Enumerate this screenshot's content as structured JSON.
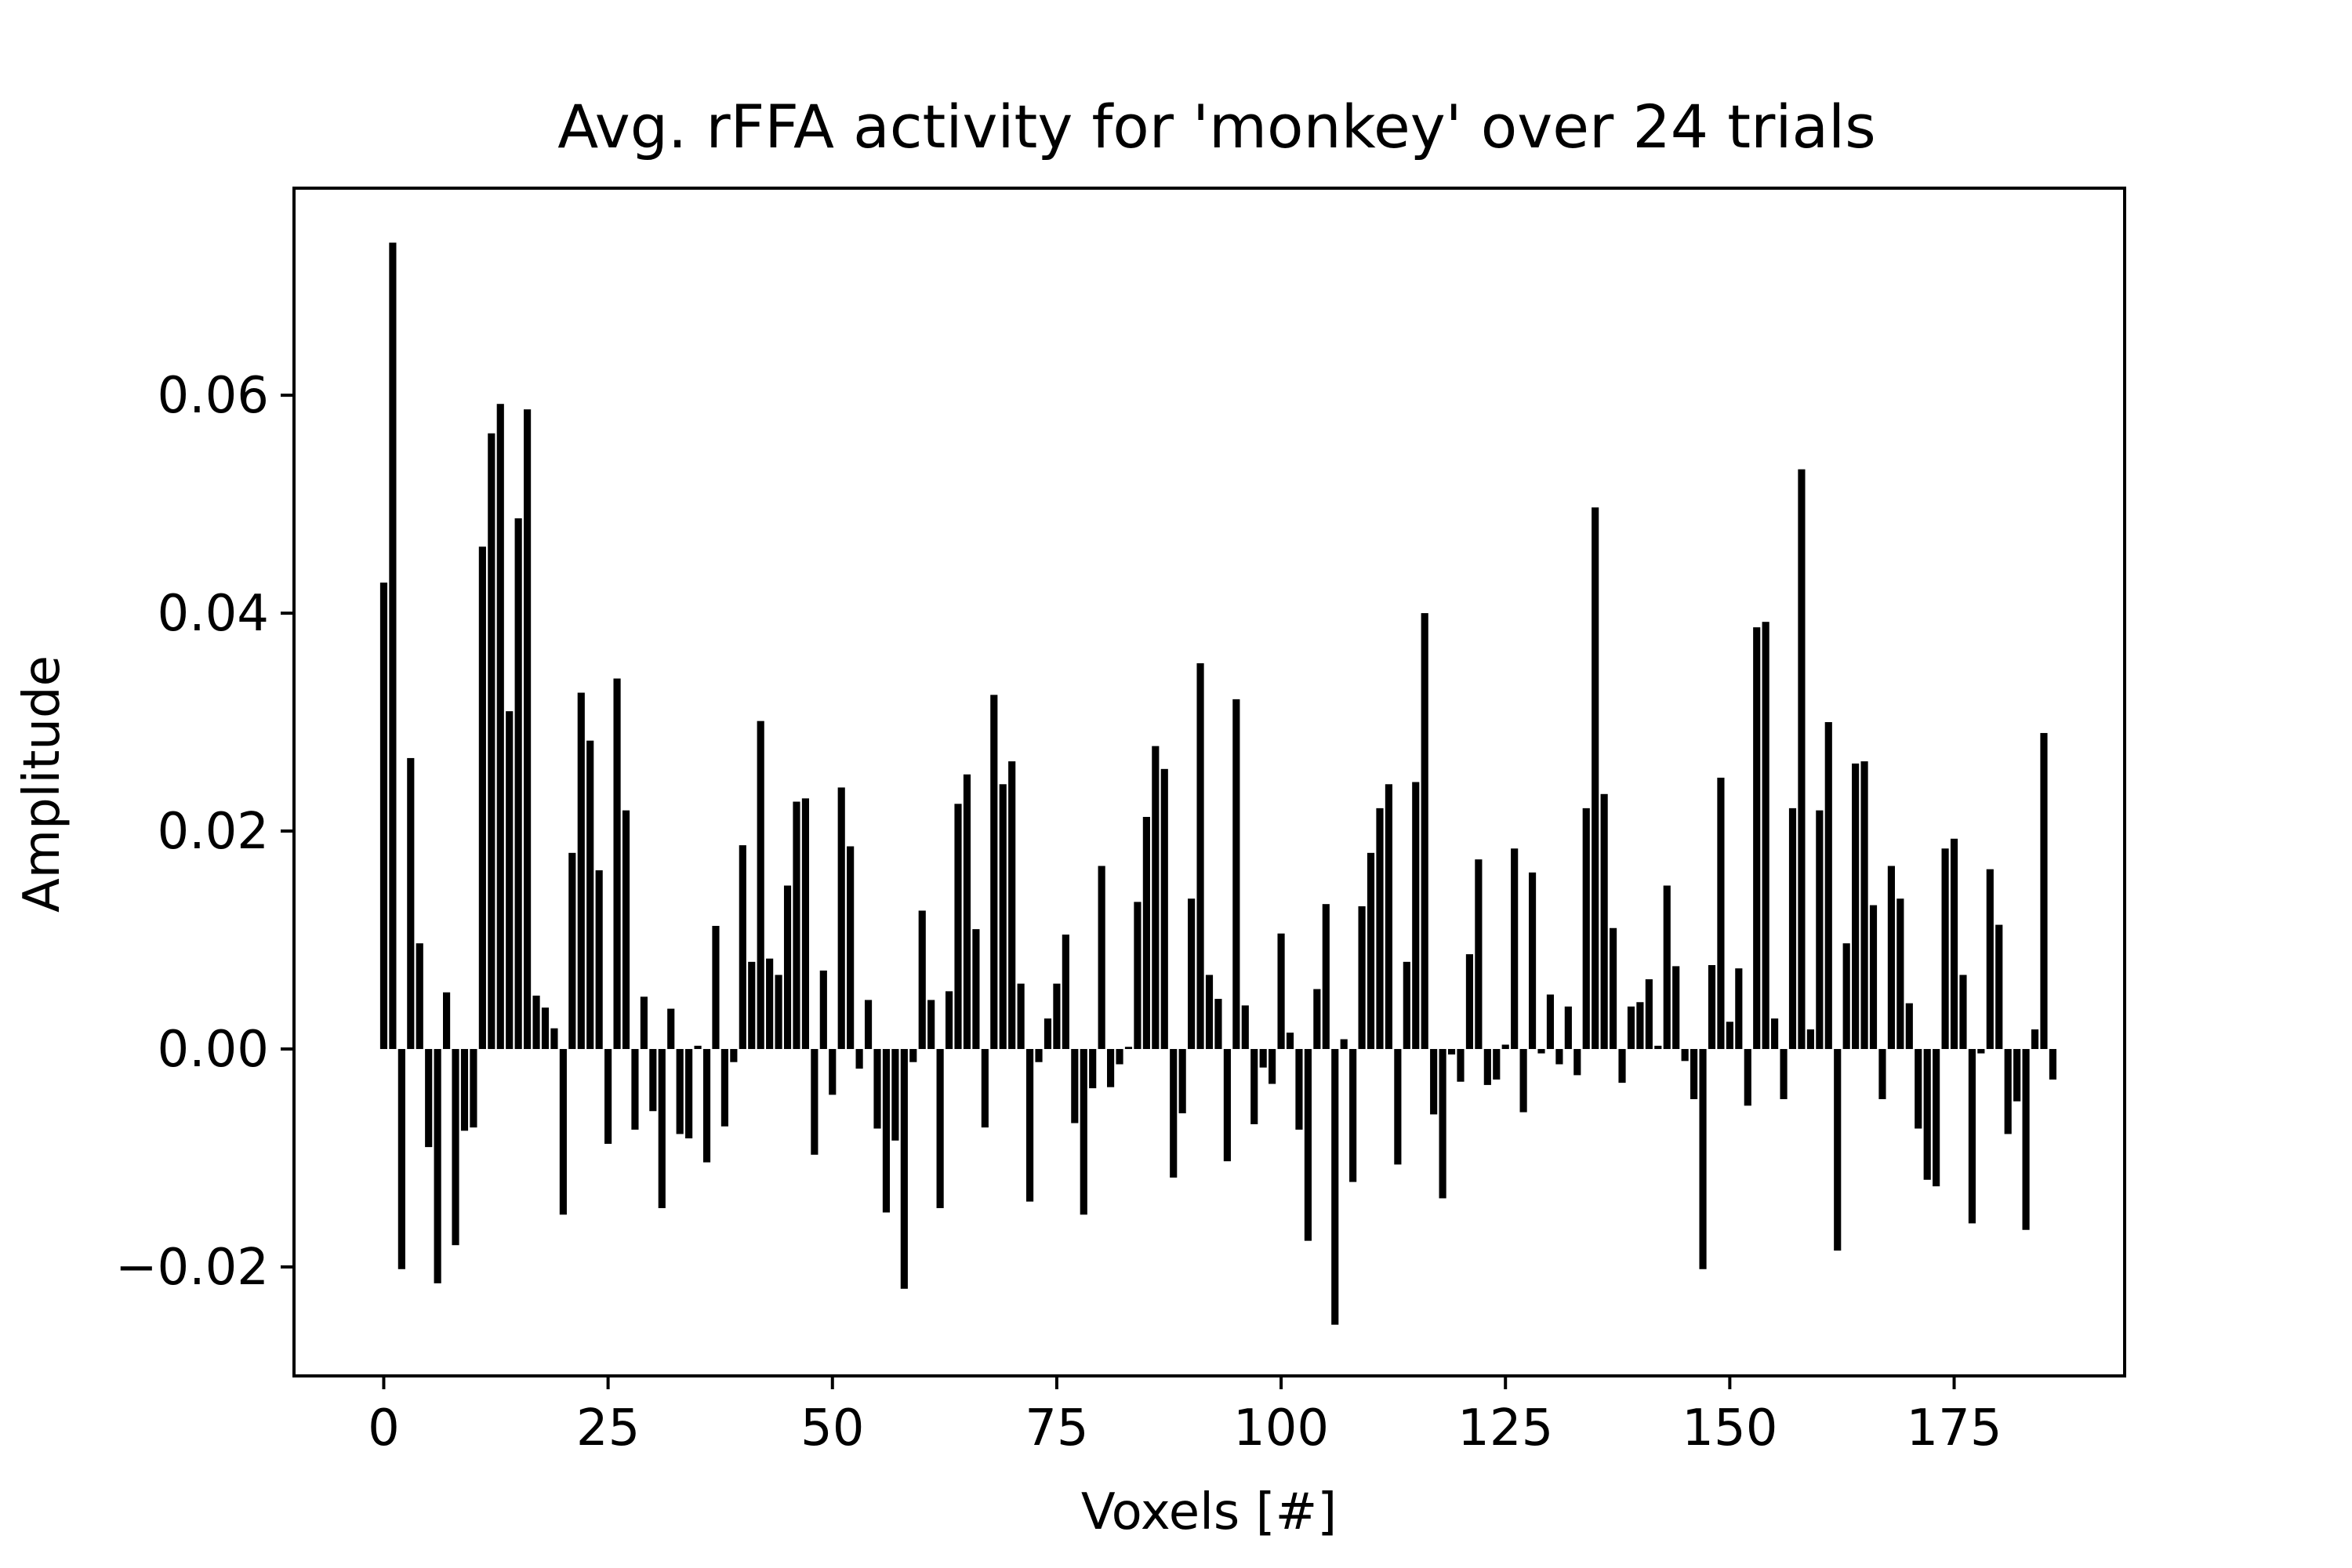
{
  "chart_data": {
    "type": "bar",
    "title": "Avg. rFFA activity for 'monkey' over 24 trials",
    "xlabel": "Voxels [#]",
    "ylabel": "Amplitude",
    "xlim": [
      -10,
      194
    ],
    "ylim": [
      -0.03,
      0.079
    ],
    "xticks": [
      0,
      25,
      50,
      75,
      100,
      125,
      150,
      175
    ],
    "xtick_labels": [
      "0",
      "25",
      "50",
      "75",
      "100",
      "125",
      "150",
      "175"
    ],
    "yticks": [
      -0.02,
      0.0,
      0.02,
      0.04,
      0.06
    ],
    "ytick_labels": [
      "−0.02",
      "0.00",
      "0.02",
      "0.04",
      "0.06"
    ],
    "grid": false,
    "legend": false,
    "bar_color": "#000000",
    "x": [
      0,
      1,
      2,
      3,
      4,
      5,
      6,
      7,
      8,
      9,
      10,
      11,
      12,
      13,
      14,
      15,
      16,
      17,
      18,
      19,
      20,
      21,
      22,
      23,
      24,
      25,
      26,
      27,
      28,
      29,
      30,
      31,
      32,
      33,
      34,
      35,
      36,
      37,
      38,
      39,
      40,
      41,
      42,
      43,
      44,
      45,
      46,
      47,
      48,
      49,
      50,
      51,
      52,
      53,
      54,
      55,
      56,
      57,
      58,
      59,
      60,
      61,
      62,
      63,
      64,
      65,
      66,
      67,
      68,
      69,
      70,
      71,
      72,
      73,
      74,
      75,
      76,
      77,
      78,
      79,
      80,
      81,
      82,
      83,
      84,
      85,
      86,
      87,
      88,
      89,
      90,
      91,
      92,
      93,
      94,
      95,
      96,
      97,
      98,
      99,
      100,
      101,
      102,
      103,
      104,
      105,
      106,
      107,
      108,
      109,
      110,
      111,
      112,
      113,
      114,
      115,
      116,
      117,
      118,
      119,
      120,
      121,
      122,
      123,
      124,
      125,
      126,
      127,
      128,
      129,
      130,
      131,
      132,
      133,
      134,
      135,
      136,
      137,
      138,
      139,
      140,
      141,
      142,
      143,
      144,
      145,
      146,
      147,
      148,
      149,
      150,
      151,
      152,
      153,
      154,
      155,
      156,
      157,
      158,
      159,
      160,
      161,
      162,
      163,
      164,
      165,
      166,
      167,
      168,
      169,
      170,
      171,
      172,
      173,
      174,
      175,
      176,
      177,
      178,
      179,
      180,
      181,
      182,
      183,
      184,
      185,
      186
    ],
    "values": [
      0.0428,
      0.074,
      -0.0202,
      0.0267,
      0.0097,
      -0.009,
      -0.0215,
      0.0052,
      -0.018,
      -0.0075,
      -0.0072,
      0.0461,
      0.0565,
      0.0592,
      0.031,
      0.0487,
      0.0587,
      0.0049,
      0.0038,
      0.0019,
      -0.0152,
      0.018,
      0.0327,
      0.0283,
      0.0164,
      -0.0087,
      0.034,
      0.0219,
      -0.0074,
      0.0048,
      -0.0057,
      -0.0146,
      0.0037,
      -0.0078,
      -0.0082,
      0.0003,
      -0.0104,
      0.0113,
      -0.0071,
      -0.0012,
      0.0187,
      0.008,
      0.0301,
      0.0083,
      0.0068,
      0.015,
      0.0227,
      0.023,
      -0.0097,
      0.0072,
      -0.0042,
      0.024,
      0.0186,
      -0.0018,
      0.0045,
      -0.0073,
      -0.015,
      -0.0084,
      -0.022,
      -0.0012,
      0.0127,
      0.0045,
      -0.0146,
      0.0053,
      0.0225,
      0.0252,
      0.011,
      -0.0072,
      0.0325,
      0.0243,
      0.0264,
      0.006,
      -0.014,
      -0.0012,
      0.0028,
      0.006,
      0.0105,
      -0.0068,
      -0.0152,
      -0.0036,
      0.0168,
      -0.0035,
      -0.0014,
      0.0002,
      0.0135,
      0.0213,
      0.0278,
      0.0257,
      -0.0118,
      -0.0059,
      0.0138,
      0.0354,
      0.0068,
      0.0046,
      -0.0103,
      0.0321,
      0.004,
      -0.0069,
      -0.0017,
      -0.0032,
      0.0106,
      0.0015,
      -0.0074,
      -0.0176,
      0.0055,
      0.0133,
      -0.0253,
      0.0009,
      -0.0122,
      0.0131,
      0.018,
      0.0221,
      0.0243,
      -0.0106,
      0.008,
      0.0245,
      0.04,
      -0.006,
      -0.0137,
      -0.0005,
      -0.003,
      0.0087,
      0.0174,
      -0.0033,
      -0.0028,
      0.0004,
      0.0184,
      -0.0058,
      0.0162,
      -0.0004,
      0.005,
      -0.0014,
      0.0039,
      -0.0024,
      0.0221,
      0.0497,
      0.0234,
      0.0111,
      -0.0031,
      0.0039,
      0.0043,
      0.0064,
      0.0003,
      0.015,
      0.0076,
      -0.0011,
      -0.0046,
      -0.0202,
      0.0077,
      0.0249,
      0.0025,
      0.0074,
      -0.0052,
      0.0387,
      0.0392,
      0.0028,
      -0.0046,
      0.0221,
      0.0532,
      0.0018,
      0.0219,
      0.03,
      -0.0185,
      0.0097,
      0.0262,
      0.0264,
      0.0132,
      -0.0046,
      0.0168,
      0.0138,
      0.0042,
      -0.0073,
      -0.012,
      -0.0126,
      0.0184,
      0.0193,
      0.0068,
      -0.016,
      -0.0004,
      0.0165,
      0.0114,
      -0.0078,
      -0.0048,
      -0.0166,
      0.0018,
      0.029,
      -0.0028
    ]
  }
}
